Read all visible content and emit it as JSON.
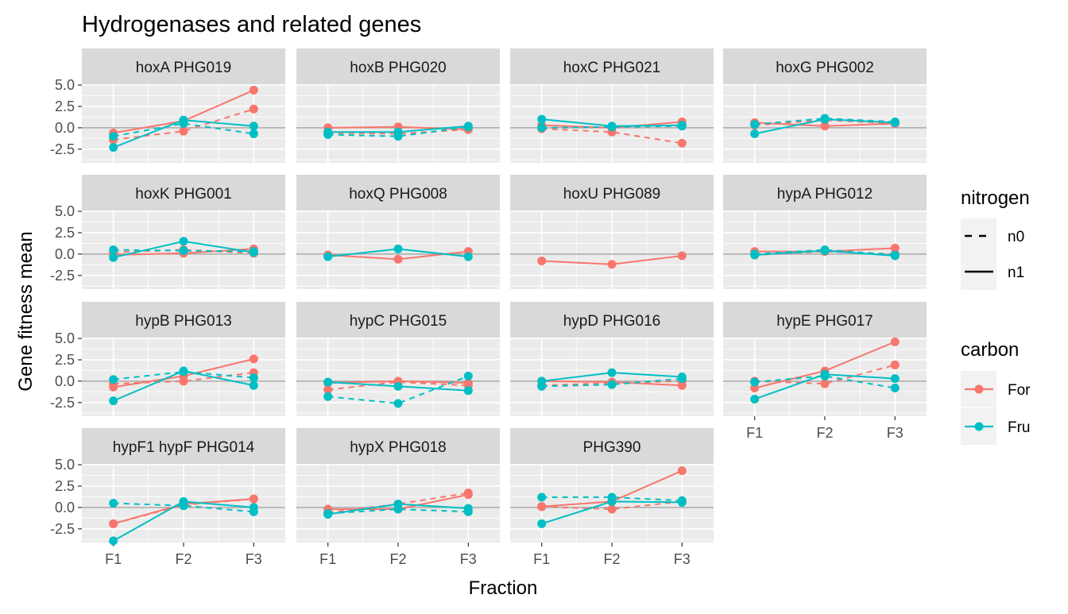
{
  "chart_data": {
    "type": "line",
    "title": "Hydrogenases and related genes",
    "xlabel": "Fraction",
    "ylabel": "Gene fitness mean",
    "categories": [
      "F1",
      "F2",
      "F3"
    ],
    "yticks": [
      5.0,
      2.5,
      0.0,
      -2.5
    ],
    "ytick_labels": [
      "5.0",
      "2.5",
      "0.0",
      "-2.5"
    ],
    "ylim": [
      -4.1,
      5.1
    ],
    "grid": true,
    "facet_layout": "4 columns, 4 rows",
    "legend_position": "right",
    "colors": {
      "For": "#F8766D",
      "Fru": "#00BFC4"
    },
    "legend": {
      "nitrogen": {
        "title": "nitrogen",
        "items": [
          "n0",
          "n1"
        ]
      },
      "carbon": {
        "title": "carbon",
        "items": [
          "For",
          "Fru"
        ]
      }
    },
    "panels": [
      {
        "title": "hoxA PHG019",
        "series": [
          {
            "carbon": "For",
            "nitrogen": "n1",
            "values": [
              -0.6,
              0.8,
              4.4
            ]
          },
          {
            "carbon": "For",
            "nitrogen": "n0",
            "values": [
              -1.4,
              -0.4,
              2.2
            ]
          },
          {
            "carbon": "Fru",
            "nitrogen": "n1",
            "values": [
              -2.3,
              0.9,
              0.2
            ]
          },
          {
            "carbon": "Fru",
            "nitrogen": "n0",
            "values": [
              -1.0,
              0.5,
              -0.7
            ]
          }
        ]
      },
      {
        "title": "hoxB PHG020",
        "series": [
          {
            "carbon": "For",
            "nitrogen": "n1",
            "values": [
              0.0,
              0.1,
              -0.2
            ]
          },
          {
            "carbon": "For",
            "nitrogen": "n0",
            "values": [
              -0.6,
              -0.7,
              -0.2
            ]
          },
          {
            "carbon": "Fru",
            "nitrogen": "n1",
            "values": [
              -0.5,
              -0.5,
              0.2
            ]
          },
          {
            "carbon": "Fru",
            "nitrogen": "n0",
            "values": [
              -0.8,
              -1.0,
              0.1
            ]
          }
        ]
      },
      {
        "title": "hoxC PHG021",
        "series": [
          {
            "carbon": "For",
            "nitrogen": "n1",
            "values": [
              0.3,
              0.0,
              0.7
            ]
          },
          {
            "carbon": "For",
            "nitrogen": "n0",
            "values": [
              -0.1,
              -0.5,
              -1.8
            ]
          },
          {
            "carbon": "Fru",
            "nitrogen": "n1",
            "values": [
              1.0,
              0.2,
              0.3
            ]
          },
          {
            "carbon": "Fru",
            "nitrogen": "n0",
            "values": [
              0.0,
              0.1,
              0.2
            ]
          }
        ]
      },
      {
        "title": "hoxG PHG002",
        "series": [
          {
            "carbon": "For",
            "nitrogen": "n1",
            "values": [
              0.6,
              0.2,
              0.5
            ]
          },
          {
            "carbon": "For",
            "nitrogen": "n0",
            "values": [
              0.3,
              0.9,
              0.5
            ]
          },
          {
            "carbon": "Fru",
            "nitrogen": "n1",
            "values": [
              -0.7,
              1.0,
              0.6
            ]
          },
          {
            "carbon": "Fru",
            "nitrogen": "n0",
            "values": [
              0.4,
              1.1,
              0.7
            ]
          }
        ]
      },
      {
        "title": "hoxK PHG001",
        "series": [
          {
            "carbon": "For",
            "nitrogen": "n1",
            "values": [
              -0.1,
              0.1,
              0.6
            ]
          },
          {
            "carbon": "For",
            "nitrogen": "n0",
            "values": [
              0.2,
              0.5,
              0.1
            ]
          },
          {
            "carbon": "Fru",
            "nitrogen": "n1",
            "values": [
              -0.4,
              1.5,
              0.2
            ]
          },
          {
            "carbon": "Fru",
            "nitrogen": "n0",
            "values": [
              0.5,
              0.4,
              0.3
            ]
          }
        ]
      },
      {
        "title": "hoxQ PHG008",
        "series": [
          {
            "carbon": "For",
            "nitrogen": "n1",
            "values": [
              -0.1,
              -0.6,
              0.3
            ]
          },
          {
            "carbon": "Fru",
            "nitrogen": "n1",
            "values": [
              -0.3,
              0.6,
              -0.3
            ]
          }
        ]
      },
      {
        "title": "hoxU PHG089",
        "series": [
          {
            "carbon": "For",
            "nitrogen": "n1",
            "values": [
              -0.8,
              -1.2,
              -0.2
            ]
          }
        ]
      },
      {
        "title": "hypA PHG012",
        "series": [
          {
            "carbon": "For",
            "nitrogen": "n1",
            "values": [
              0.3,
              0.3,
              0.7
            ]
          },
          {
            "carbon": "For",
            "nitrogen": "n0",
            "values": [
              -0.1,
              0.3,
              0.0
            ]
          },
          {
            "carbon": "Fru",
            "nitrogen": "n1",
            "values": [
              -0.1,
              0.4,
              -0.2
            ]
          },
          {
            "carbon": "Fru",
            "nitrogen": "n0",
            "values": [
              0.0,
              0.5,
              -0.1
            ]
          }
        ]
      },
      {
        "title": "hypB PHG013",
        "series": [
          {
            "carbon": "For",
            "nitrogen": "n1",
            "values": [
              -0.7,
              0.6,
              2.6
            ]
          },
          {
            "carbon": "For",
            "nitrogen": "n0",
            "values": [
              -0.3,
              0.0,
              1.0
            ]
          },
          {
            "carbon": "Fru",
            "nitrogen": "n1",
            "values": [
              -2.3,
              1.2,
              -0.5
            ]
          },
          {
            "carbon": "Fru",
            "nitrogen": "n0",
            "values": [
              0.2,
              1.1,
              0.4
            ]
          }
        ]
      },
      {
        "title": "hypC PHG015",
        "series": [
          {
            "carbon": "For",
            "nitrogen": "n1",
            "values": [
              -0.2,
              0.0,
              -0.2
            ]
          },
          {
            "carbon": "For",
            "nitrogen": "n0",
            "values": [
              -1.0,
              -0.1,
              -0.5
            ]
          },
          {
            "carbon": "Fru",
            "nitrogen": "n1",
            "values": [
              -0.1,
              -0.6,
              -1.1
            ]
          },
          {
            "carbon": "Fru",
            "nitrogen": "n0",
            "values": [
              -1.8,
              -2.6,
              0.6
            ]
          }
        ]
      },
      {
        "title": "hypD PHG016",
        "series": [
          {
            "carbon": "For",
            "nitrogen": "n1",
            "values": [
              0.0,
              -0.1,
              -0.5
            ]
          },
          {
            "carbon": "For",
            "nitrogen": "n0",
            "values": [
              -0.5,
              -0.2,
              0.0
            ]
          },
          {
            "carbon": "Fru",
            "nitrogen": "n1",
            "values": [
              0.0,
              1.0,
              0.5
            ]
          },
          {
            "carbon": "Fru",
            "nitrogen": "n0",
            "values": [
              -0.6,
              -0.4,
              0.3
            ]
          }
        ]
      },
      {
        "title": "hypE PHG017",
        "series": [
          {
            "carbon": "For",
            "nitrogen": "n1",
            "values": [
              -0.8,
              1.2,
              4.6
            ]
          },
          {
            "carbon": "For",
            "nitrogen": "n0",
            "values": [
              0.0,
              -0.3,
              1.9
            ]
          },
          {
            "carbon": "Fru",
            "nitrogen": "n1",
            "values": [
              -2.1,
              0.8,
              0.3
            ]
          },
          {
            "carbon": "Fru",
            "nitrogen": "n0",
            "values": [
              -0.1,
              0.6,
              -0.8
            ]
          }
        ]
      },
      {
        "title": "hypF1 hypF PHG014",
        "series": [
          {
            "carbon": "For",
            "nitrogen": "n1",
            "values": [
              -1.9,
              0.4,
              1.0
            ]
          },
          {
            "carbon": "For",
            "nitrogen": "n0",
            "values": [
              -1.9,
              0.3,
              1.0
            ]
          },
          {
            "carbon": "Fru",
            "nitrogen": "n1",
            "values": [
              -3.9,
              0.7,
              0.0
            ]
          },
          {
            "carbon": "Fru",
            "nitrogen": "n0",
            "values": [
              0.5,
              0.2,
              -0.5
            ]
          }
        ]
      },
      {
        "title": "hypX PHG018",
        "series": [
          {
            "carbon": "For",
            "nitrogen": "n1",
            "values": [
              -0.2,
              -0.2,
              1.5
            ]
          },
          {
            "carbon": "For",
            "nitrogen": "n0",
            "values": [
              -0.6,
              0.4,
              1.7
            ]
          },
          {
            "carbon": "Fru",
            "nitrogen": "n1",
            "values": [
              -0.8,
              0.4,
              -0.1
            ]
          },
          {
            "carbon": "Fru",
            "nitrogen": "n0",
            "values": [
              -0.7,
              -0.2,
              -0.5
            ]
          }
        ]
      },
      {
        "title": "PHG390",
        "series": [
          {
            "carbon": "For",
            "nitrogen": "n1",
            "values": [
              0.1,
              0.7,
              4.3
            ]
          },
          {
            "carbon": "For",
            "nitrogen": "n0",
            "values": [
              0.1,
              -0.2,
              0.7
            ]
          },
          {
            "carbon": "Fru",
            "nitrogen": "n1",
            "values": [
              -1.9,
              0.7,
              0.6
            ]
          },
          {
            "carbon": "Fru",
            "nitrogen": "n0",
            "values": [
              1.2,
              1.2,
              0.8
            ]
          }
        ]
      }
    ]
  }
}
